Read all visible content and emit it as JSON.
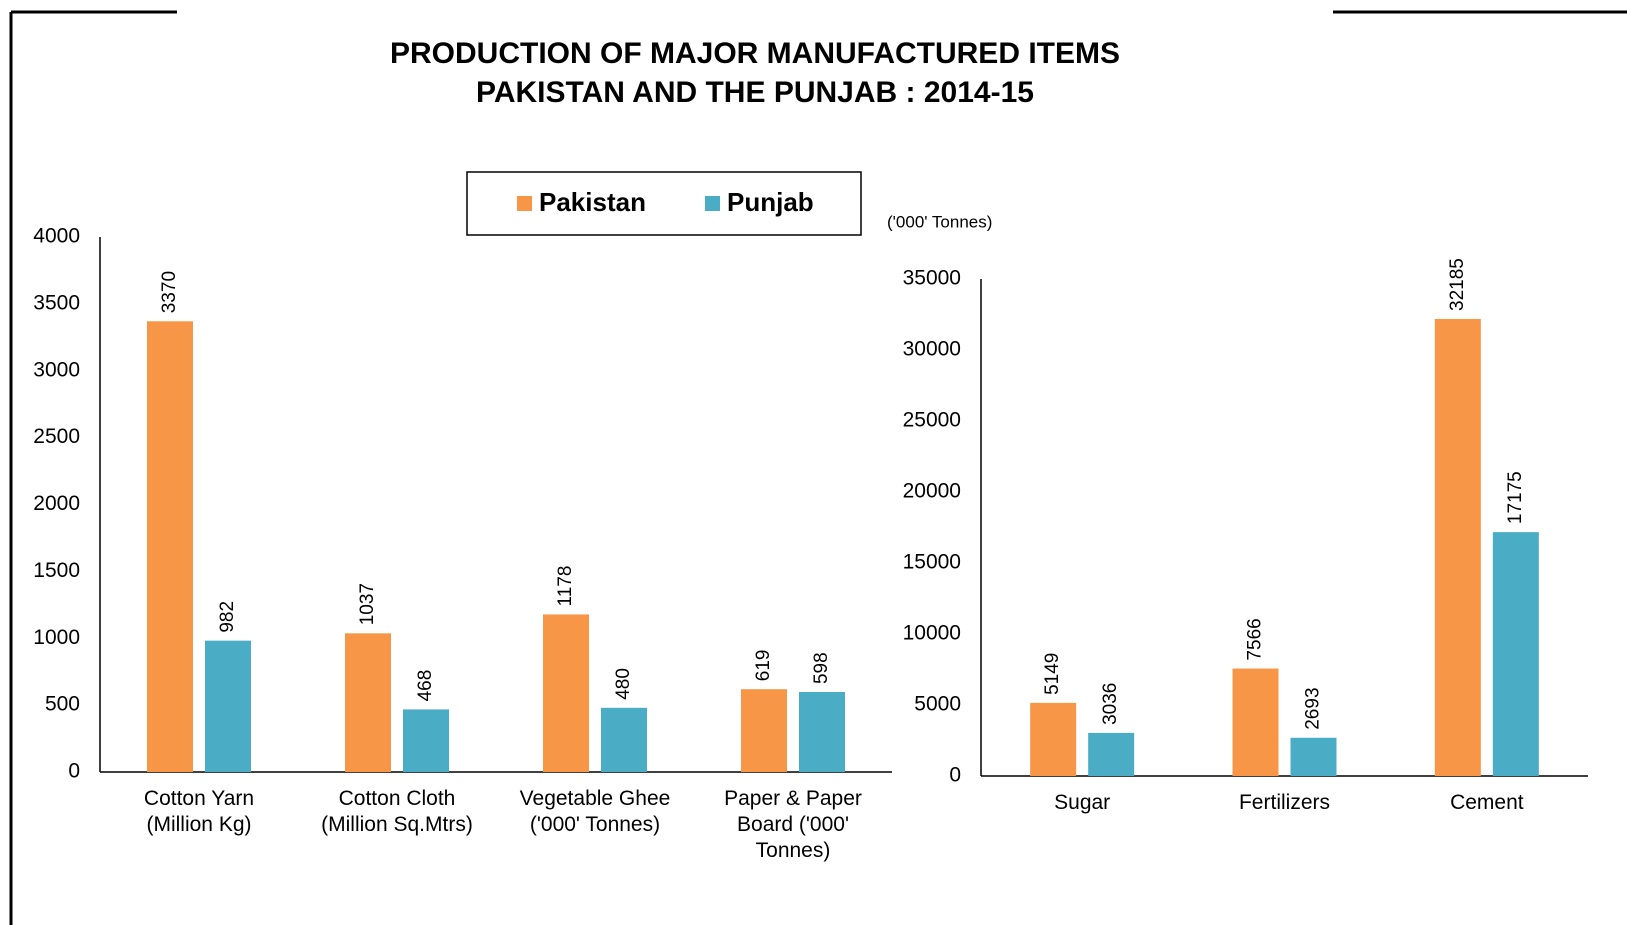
{
  "title": [
    "PRODUCTION OF MAJOR MANUFACTURED ITEMS",
    "PAKISTAN AND THE  PUNJAB : 2014-15"
  ],
  "chart_data": [
    {
      "type": "bar",
      "categories": [
        [
          "Cotton Yarn",
          "(Million Kg)"
        ],
        [
          "Cotton Cloth",
          "(Million Sq.Mtrs)"
        ],
        [
          "Vegetable Ghee",
          "('000' Tonnes)"
        ],
        [
          "Paper & Paper",
          "Board ('000'",
          "Tonnes)"
        ]
      ],
      "series": [
        {
          "name": "Pakistan",
          "color": "#f79646",
          "values": [
            3370,
            1037,
            1178,
            619
          ]
        },
        {
          "name": "Punjab",
          "color": "#4bacc6",
          "values": [
            982,
            468,
            480,
            598
          ]
        }
      ],
      "ylim": [
        0,
        4000
      ],
      "yticks": [
        0,
        500,
        1000,
        1500,
        2000,
        2500,
        3000,
        3500,
        4000
      ]
    },
    {
      "type": "bar",
      "y_label": "('000' Tonnes)",
      "categories": [
        [
          "Sugar"
        ],
        [
          "Fertilizers"
        ],
        [
          "Cement"
        ]
      ],
      "series": [
        {
          "color": "#f79646",
          "values": [
            5149,
            7566,
            32185
          ]
        },
        {
          "color": "#4bacc6",
          "values": [
            3036,
            2693,
            17175
          ]
        }
      ],
      "ylim": [
        0,
        35000
      ],
      "yticks": [
        0,
        5000,
        10000,
        15000,
        20000,
        25000,
        30000,
        35000
      ]
    }
  ]
}
